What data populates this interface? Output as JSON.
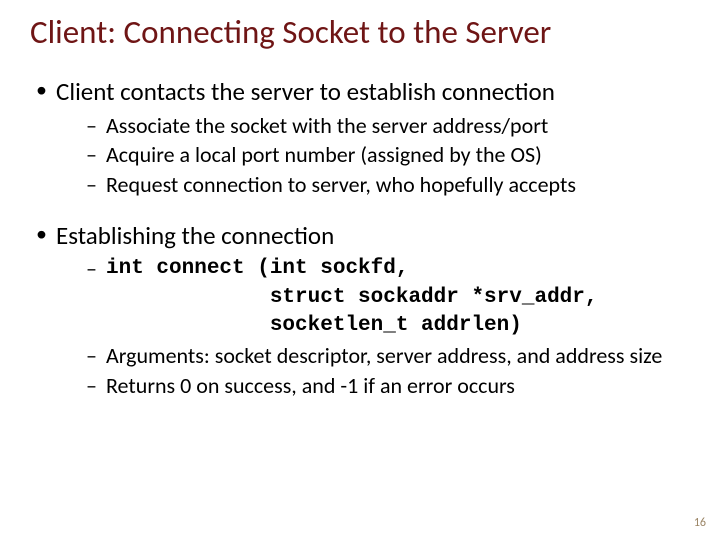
{
  "colors": {
    "title": "#6f1515",
    "body": "#000000",
    "pagenum": "#9a8464",
    "background": "#ffffff"
  },
  "title": "Client: Connecting Socket to the Server",
  "bullets": [
    {
      "text": "Client contacts the server to establish connection",
      "sub": [
        {
          "text": "Associate the socket with the server address/port"
        },
        {
          "text": "Acquire a local port number (assigned by the OS)"
        },
        {
          "text": "Request connection to server, who hopefully accepts"
        }
      ]
    },
    {
      "text": "Establishing the connection",
      "sub": [
        {
          "code": "int connect (int sockfd,\n             struct sockaddr *srv_addr,\n             socketlen_t addrlen)"
        },
        {
          "text": "Arguments: socket descriptor, server address, and address size"
        },
        {
          "text": "Returns 0 on success, and -1 if an error occurs"
        }
      ]
    }
  ],
  "pagenum": "16"
}
